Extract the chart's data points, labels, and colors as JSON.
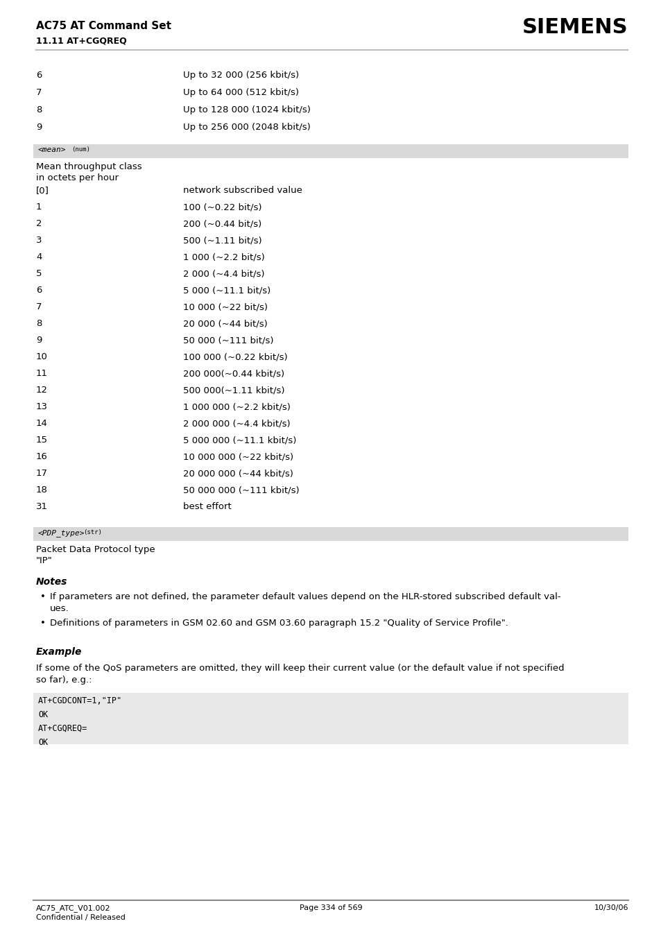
{
  "page_title": "AC75 AT Command Set",
  "page_subtitle": "11.11 AT+CGQREQ",
  "siemens_logo": "SIEMENS",
  "bg_color": "#ffffff",
  "header_line_color": "#bbbbbb",
  "section_bg_color": "#d8d8d8",
  "code_bg_color": "#e8e8e8",
  "footer_line_color": "#888888",
  "top_table_rows": [
    [
      "6",
      "Up to 32 000 (256 kbit/s)"
    ],
    [
      "7",
      "Up to 64 000 (512 kbit/s)"
    ],
    [
      "8",
      "Up to 128 000 (1024 kbit/s)"
    ],
    [
      "9",
      "Up to 256 000 (2048 kbit/s)"
    ]
  ],
  "mean_section_label": "<mean>",
  "mean_section_superscript": "(num)",
  "mean_description_line1": "Mean throughput class",
  "mean_description_line2": "in octets per hour",
  "mean_rows": [
    [
      "[0]",
      "network subscribed value"
    ],
    [
      "1",
      "100 (~0.22 bit/s)"
    ],
    [
      "2",
      "200 (~0.44 bit/s)"
    ],
    [
      "3",
      "500 (~1.11 bit/s)"
    ],
    [
      "4",
      "1 000 (~2.2 bit/s)"
    ],
    [
      "5",
      "2 000 (~4.4 bit/s)"
    ],
    [
      "6",
      "5 000 (~11.1 bit/s)"
    ],
    [
      "7",
      "10 000 (~22 bit/s)"
    ],
    [
      "8",
      "20 000 (~44 bit/s)"
    ],
    [
      "9",
      "50 000 (~111 bit/s)"
    ],
    [
      "10",
      "100 000 (~0.22 kbit/s)"
    ],
    [
      "11",
      "200 000(~0.44 kbit/s)"
    ],
    [
      "12",
      "500 000(~1.11 kbit/s)"
    ],
    [
      "13",
      "1 000 000 (~2.2 kbit/s)"
    ],
    [
      "14",
      "2 000 000 (~4.4 kbit/s)"
    ],
    [
      "15",
      "5 000 000 (~11.1 kbit/s)"
    ],
    [
      "16",
      "10 000 000 (~22 kbit/s)"
    ],
    [
      "17",
      "20 000 000 (~44 kbit/s)"
    ],
    [
      "18",
      "50 000 000 (~111 kbit/s)"
    ],
    [
      "31",
      "best effort"
    ]
  ],
  "pdp_section_label": "<PDP_type>",
  "pdp_section_superscript": "(str)",
  "pdp_description_line1": "Packet Data Protocol type",
  "pdp_description_line2": "\"IP\"",
  "notes_title": "Notes",
  "notes_bullets": [
    "If parameters are not defined, the parameter default values depend on the HLR-stored subscribed default val-\nues.",
    "Definitions of parameters in GSM 02.60 and GSM 03.60 paragraph 15.2 \"Quality of Service Profile\"."
  ],
  "example_title": "Example",
  "example_text": "If some of the QoS parameters are omitted, they will keep their current value (or the default value if not specified\nso far), e.g.:",
  "code_block": "AT+CGDCONT=1,\"IP\"\nOK\nAT+CGQREQ=\nOK",
  "footer_left1": "AC75_ATC_V01.002",
  "footer_left2": "Confidential / Released",
  "footer_center": "Page 334 of 569",
  "footer_right": "10/30/06"
}
